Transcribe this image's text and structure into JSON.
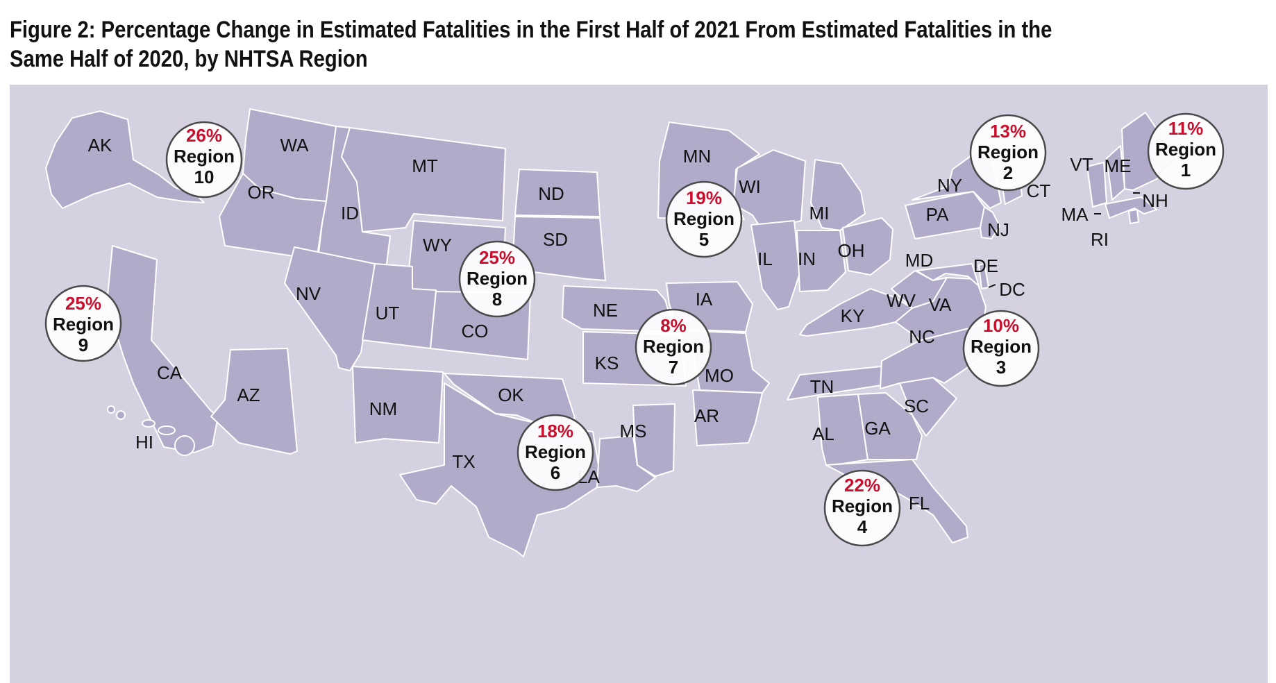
{
  "title": {
    "line1": "Figure 2: Percentage Change in Estimated Fatalities in the First Half of 2021 From Estimated Fatalities in the",
    "line2": "Same Half of 2020, by NHTSA Region"
  },
  "colors": {
    "background": "#d6d1e0",
    "state_fill": "#b1abc9",
    "state_border": "#ffffff",
    "percent_text": "#c8102e",
    "label_text": "#111111"
  },
  "states": {
    "AK": "AK",
    "HI": "HI",
    "WA": "WA",
    "OR": "OR",
    "ID": "ID",
    "MT": "MT",
    "WY": "WY",
    "CA": "CA",
    "NV": "NV",
    "UT": "UT",
    "AZ": "AZ",
    "CO": "CO",
    "NM": "NM",
    "ND": "ND",
    "SD": "SD",
    "NE": "NE",
    "KS": "KS",
    "OK": "OK",
    "TX": "TX",
    "MN": "MN",
    "IA": "IA",
    "MO": "MO",
    "AR": "AR",
    "LA": "LA",
    "WI": "WI",
    "IL": "IL",
    "MI": "MI",
    "IN": "IN",
    "OH": "OH",
    "KY": "KY",
    "TN": "TN",
    "MS": "MS",
    "AL": "AL",
    "GA": "GA",
    "FL": "FL",
    "SC": "SC",
    "NC": "NC",
    "VA": "VA",
    "WV": "WV",
    "MD": "MD",
    "DE": "DE",
    "DC": "DC",
    "PA": "PA",
    "NY": "NY",
    "NJ": "NJ",
    "CT": "CT",
    "RI": "RI",
    "MA": "MA",
    "VT": "VT",
    "NH": "NH",
    "ME": "ME"
  },
  "regions": [
    {
      "id": "1",
      "change": "11%",
      "label": "Region",
      "number": "1"
    },
    {
      "id": "2",
      "change": "13%",
      "label": "Region",
      "number": "2"
    },
    {
      "id": "3",
      "change": "10%",
      "label": "Region",
      "number": "3"
    },
    {
      "id": "4",
      "change": "22%",
      "label": "Region",
      "number": "4"
    },
    {
      "id": "5",
      "change": "19%",
      "label": "Region",
      "number": "5"
    },
    {
      "id": "6",
      "change": "18%",
      "label": "Region",
      "number": "6"
    },
    {
      "id": "7",
      "change": "8%",
      "label": "Region",
      "number": "7"
    },
    {
      "id": "8",
      "change": "25%",
      "label": "Region",
      "number": "8"
    },
    {
      "id": "9",
      "change": "25%",
      "label": "Region",
      "number": "9"
    },
    {
      "id": "10",
      "change": "26%",
      "label": "Region",
      "number": "10"
    }
  ]
}
